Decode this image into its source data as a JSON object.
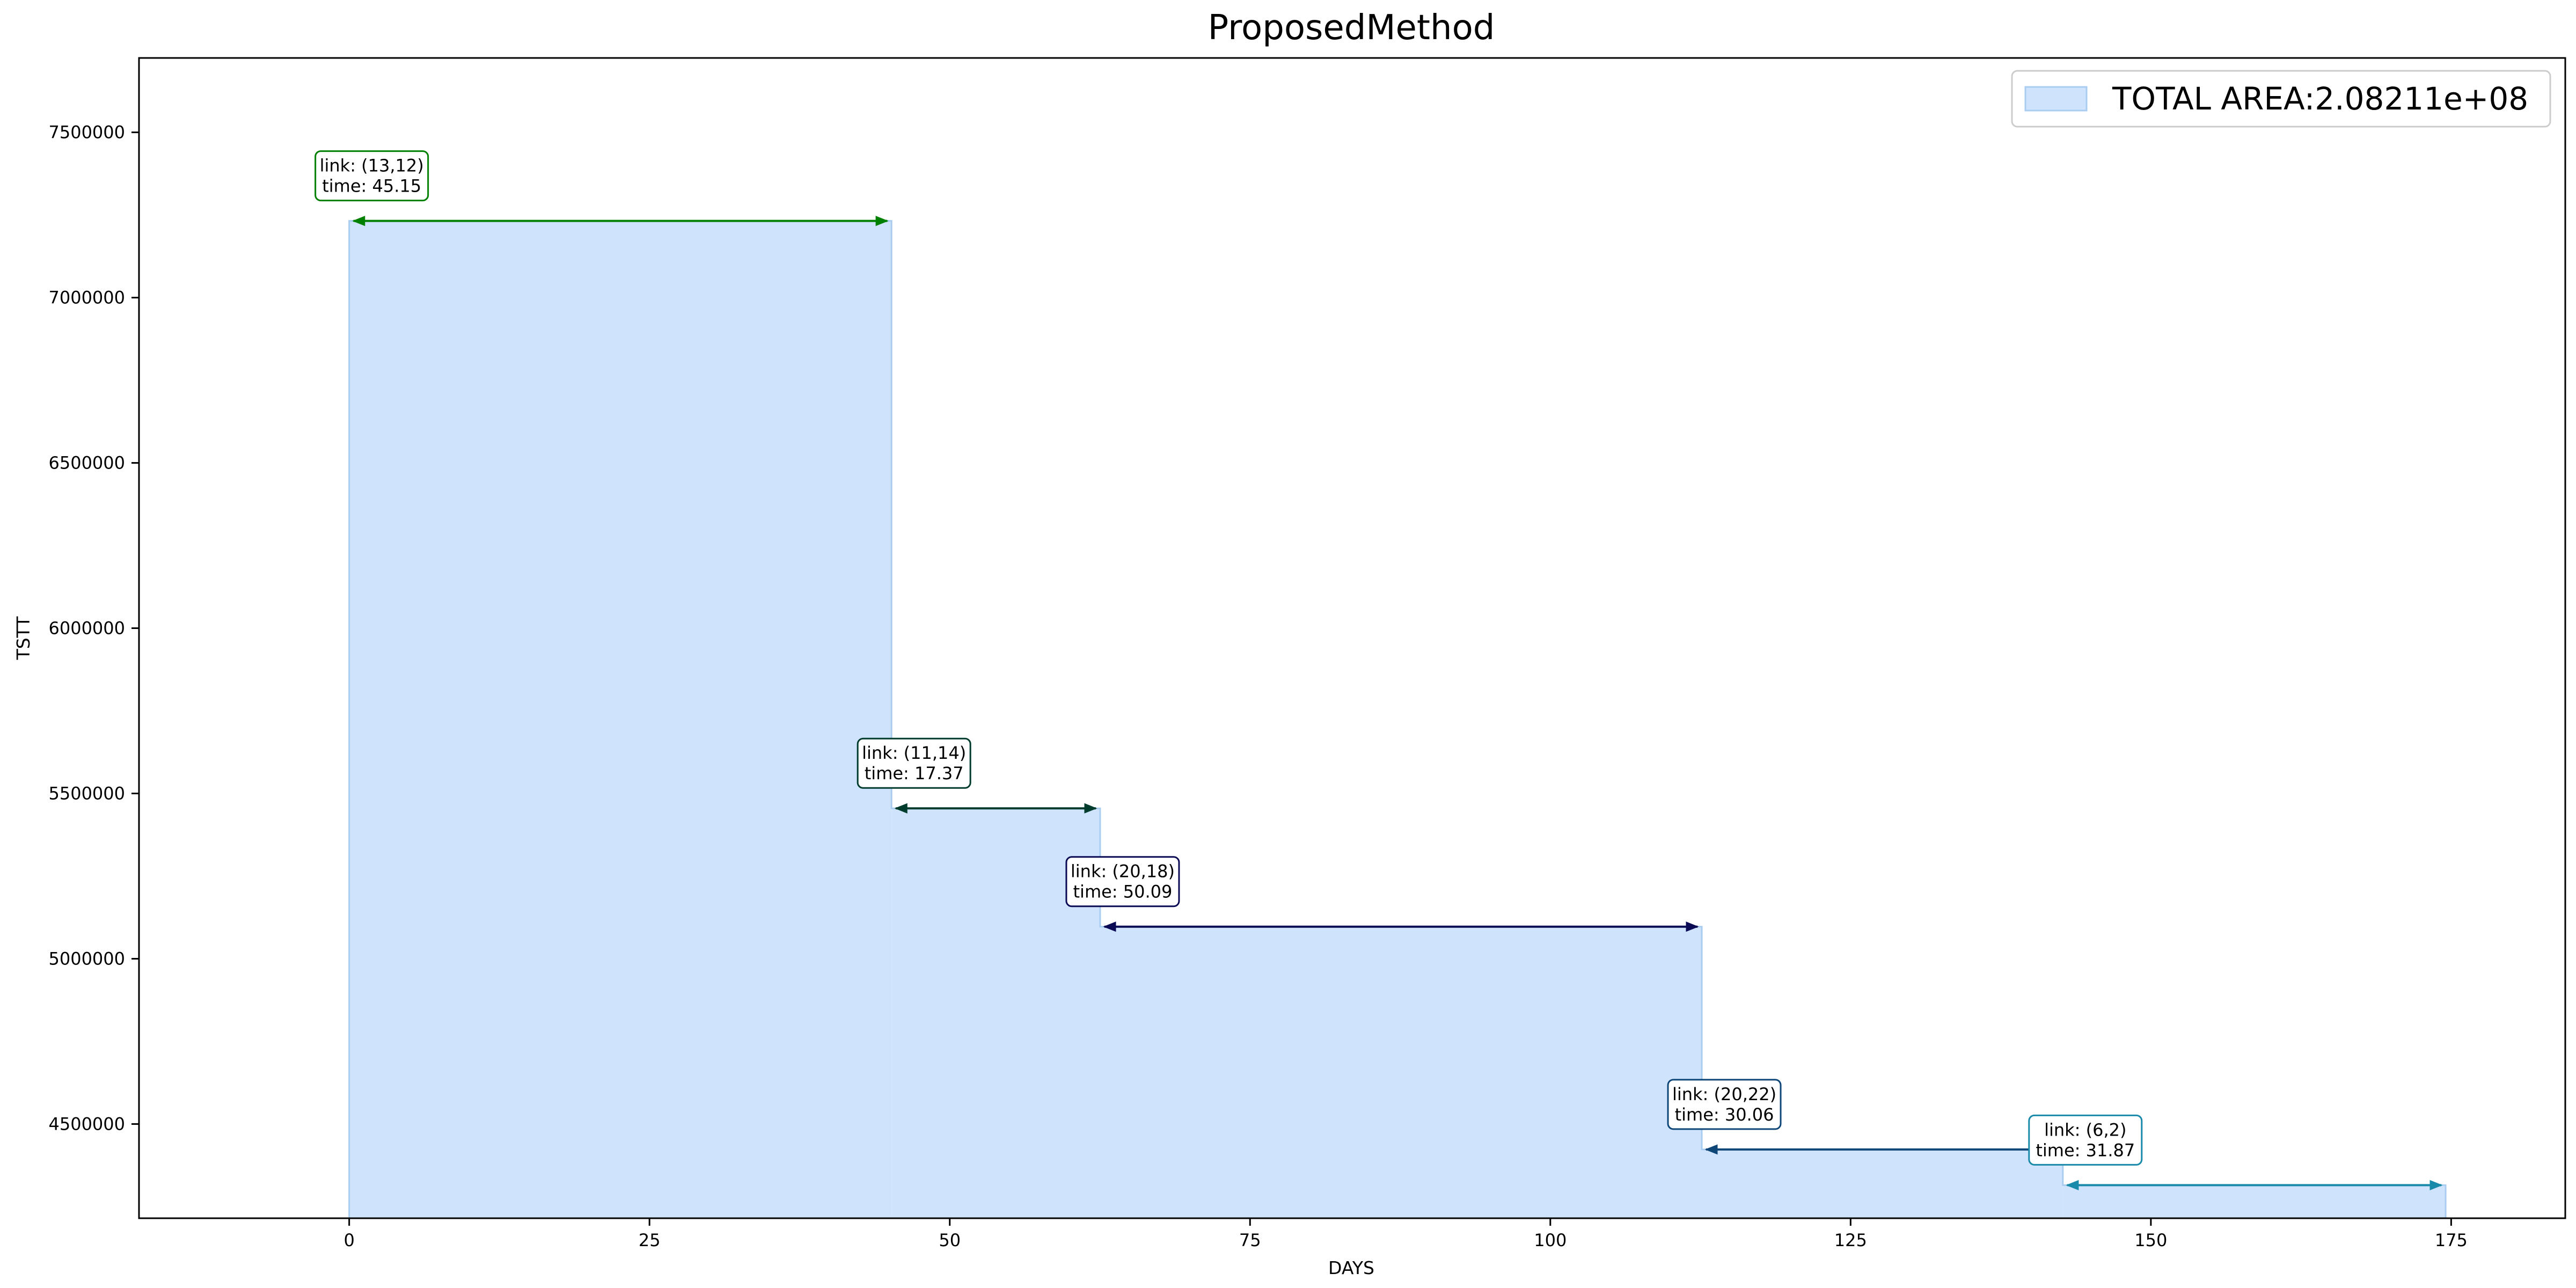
{
  "chart_data": {
    "type": "area",
    "title": "ProposedMethod",
    "xlabel": "DAYS",
    "ylabel": "TSTT",
    "xlim": [
      -17.5,
      184.5
    ],
    "ylim": [
      4215000,
      7725000
    ],
    "x_ticks": [
      0,
      25,
      50,
      75,
      100,
      125,
      150,
      175
    ],
    "y_ticks": [
      4500000,
      5000000,
      5500000,
      6000000,
      6500000,
      7000000,
      7500000
    ],
    "fill_color": "#cfe4fc",
    "edge_color": "#a9cdf0",
    "legend": {
      "label": "TOTAL AREA:2.08211e+08",
      "position": "top-right"
    },
    "steps": [
      {
        "x_start": 0,
        "x_end": 45.15,
        "y": 7232000,
        "link": "link: (13,12)",
        "time": "time: 45.15",
        "color": "#008000"
      },
      {
        "x_start": 45.15,
        "x_end": 62.52,
        "y": 5455000,
        "link": "link: (11,14)",
        "time": "time: 17.37",
        "color": "#003c2d"
      },
      {
        "x_start": 62.52,
        "x_end": 112.61,
        "y": 5097000,
        "link": "link: (20,18)",
        "time": "time: 50.09",
        "color": "#0a0a55"
      },
      {
        "x_start": 112.61,
        "x_end": 142.67,
        "y": 4423000,
        "link": "link: (20,22)",
        "time": "time: 30.06",
        "color": "#0f4678"
      },
      {
        "x_start": 142.67,
        "x_end": 174.54,
        "y": 4315000,
        "link": "link: (6,2)",
        "time": "time: 31.87",
        "color": "#1a8aaa"
      }
    ]
  }
}
